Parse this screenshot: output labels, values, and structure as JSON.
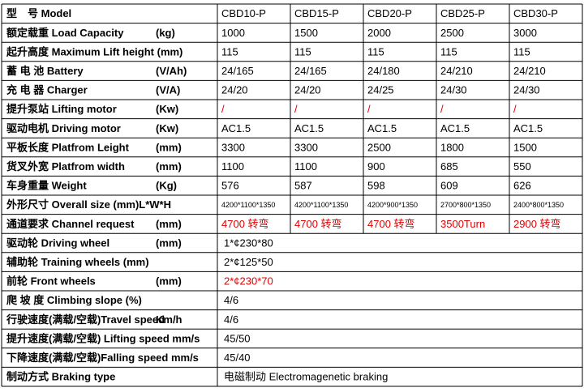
{
  "table": {
    "rows": [
      {
        "label": "型　号 Model",
        "values": [
          "CBD10-P",
          "CBD15-P",
          "CBD20-P",
          "CBD25-P",
          "CBD30-P"
        ]
      },
      {
        "label": "额定载重 Load Capacity",
        "unit": "(kg)",
        "values": [
          "1000",
          "1500",
          "2000",
          "2500",
          "3000"
        ]
      },
      {
        "label": "起升高度 Maximum Lift height (mm)",
        "values": [
          "115",
          "115",
          "115",
          "115",
          "115"
        ]
      },
      {
        "label": "蓄 电 池 Battery",
        "unit": "(V/Ah)",
        "values": [
          "24/165",
          "24/165",
          "24/180",
          "24/210",
          "24/210"
        ]
      },
      {
        "label": "充 电 器 Charger",
        "unit": "(V/A)",
        "values": [
          "24/20",
          "24/20",
          "24/25",
          "24/30",
          "24/30"
        ]
      },
      {
        "label": "提升泵站 Lifting motor",
        "unit": "(Kw)",
        "values": [
          "/",
          "/",
          "/",
          "/",
          "/"
        ],
        "color": "#e00000"
      },
      {
        "label": "驱动电机 Driving motor",
        "unit": "(Kw)",
        "values": [
          "AC1.5",
          "AC1.5",
          "AC1.5",
          "AC1.5",
          "AC1.5"
        ]
      },
      {
        "label": "平板长度 Platfrom Leight",
        "unit": "(mm)",
        "values": [
          "3300",
          "3300",
          "2500",
          "1800",
          "1500"
        ]
      },
      {
        "label": "货叉外宽 Platfrom width",
        "unit": "(mm)",
        "values": [
          "1100",
          "1100",
          "900",
          "685",
          "550"
        ]
      },
      {
        "label": "车身重量 Weight",
        "unit": "(Kg)",
        "values": [
          "576",
          "587",
          "598",
          "609",
          "626"
        ]
      },
      {
        "label": "外形尺寸 Overall size (mm)L*W*H",
        "values": [
          "4200*1100*1350",
          "4200*1100*1350",
          "4200*900*1350",
          "2700*800*1350",
          "2400*800*1350"
        ],
        "small": true
      },
      {
        "label": "通道要求 Channel request",
        "unit": "(mm)",
        "values": [
          "4700 转弯",
          "4700 转弯",
          "4700 转弯",
          "3500Turn",
          "2900 转弯"
        ],
        "color": "#e00000"
      },
      {
        "label": "驱动轮 Driving wheel",
        "unit": "(mm)",
        "value": "1*¢230*80"
      },
      {
        "label": "辅助轮 Training wheels (mm)",
        "value": "2*¢125*50"
      },
      {
        "label": "前轮 Front wheels",
        "unit": "(mm)",
        "value": "2*¢230*70",
        "color": "#e00000"
      },
      {
        "label": "爬 坡 度 Climbing slope (%)",
        "value": "4/6"
      },
      {
        "label": "行驶速度(满载/空载)Travel speed",
        "unit": "Km/h",
        "value": "4/6"
      },
      {
        "label": "提升速度(满载/空载) Lifting speed mm/s",
        "value": "45/50"
      },
      {
        "label": "下降速度(满载/空载)Falling speed mm/s",
        "value": "45/40"
      },
      {
        "label": "制动方式 Braking type",
        "value": "电磁制动 Electromagenetic braking"
      }
    ]
  }
}
